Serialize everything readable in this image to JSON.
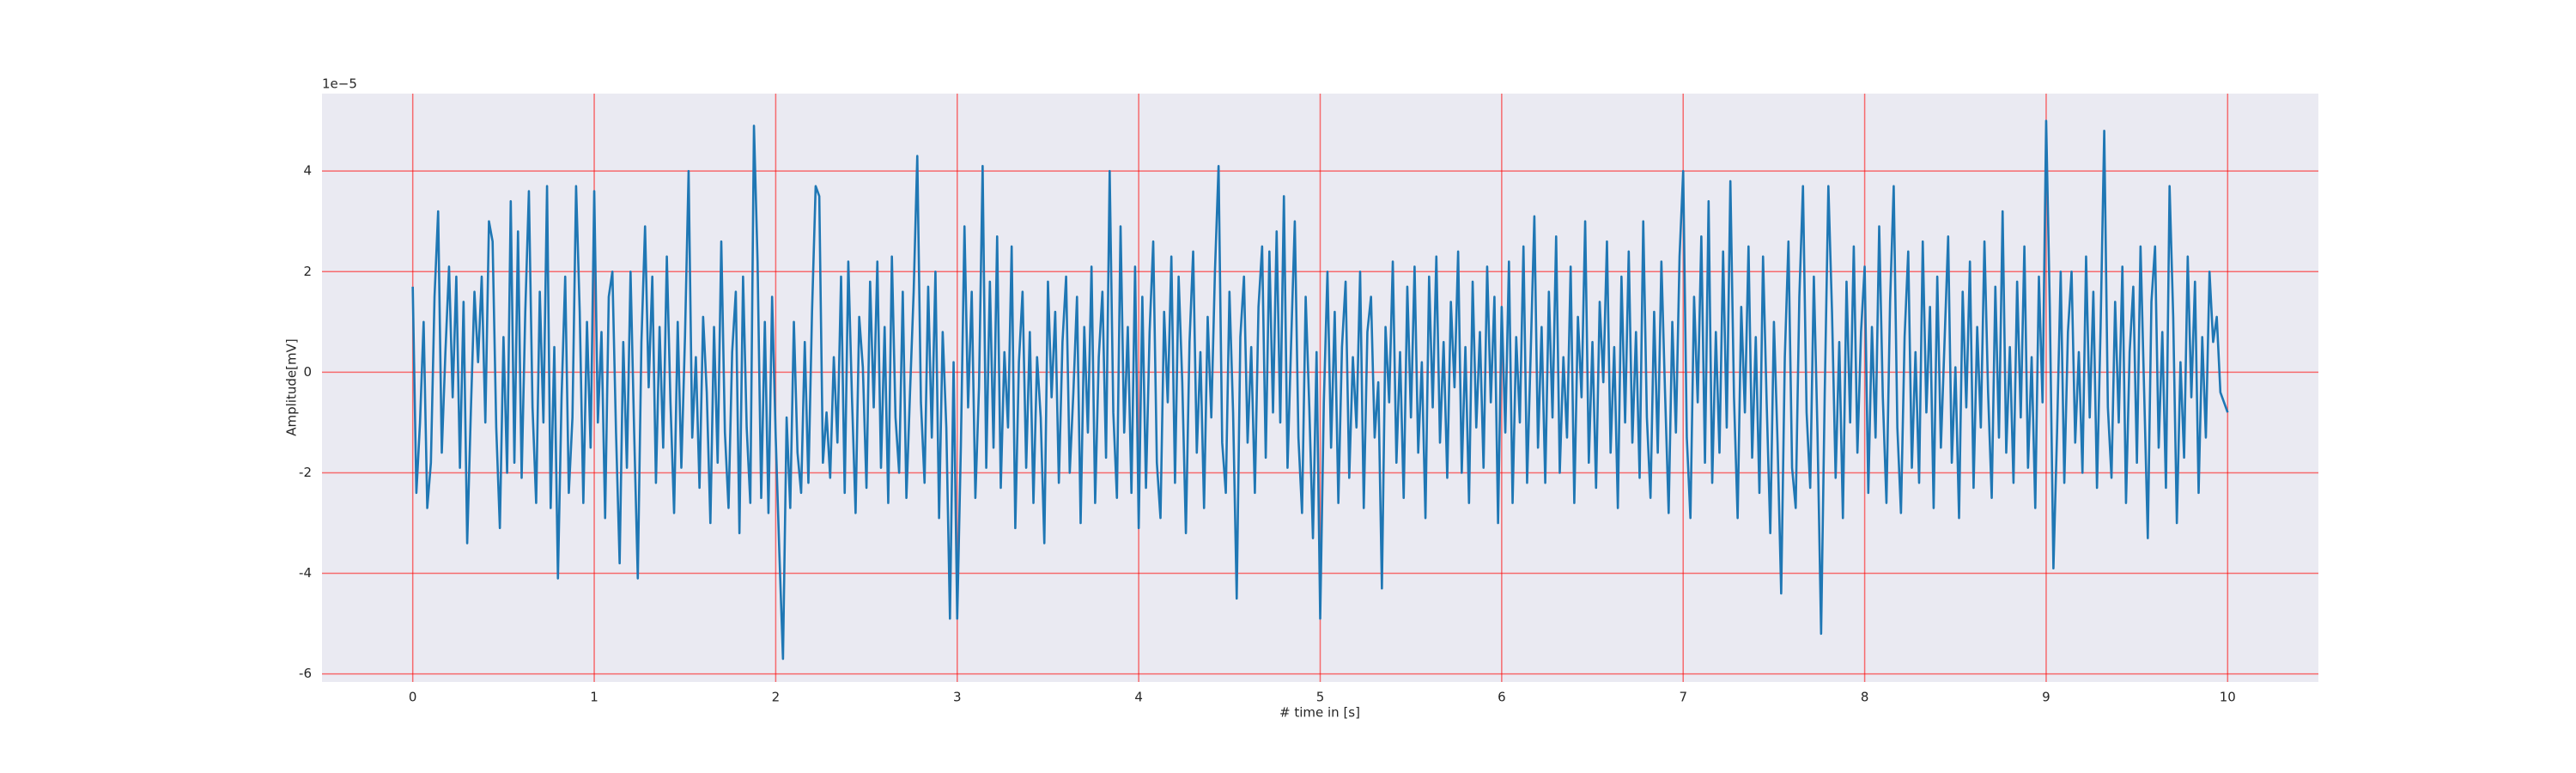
{
  "chart_data": {
    "type": "line",
    "x_label": "# time in [s]",
    "y_label": "Amplitude[mV]",
    "y_offset_label": "1e−5",
    "color": "#1f77b4",
    "grid": true,
    "grid_color": "#ff0000",
    "background": "#eaeaf2",
    "xlim": [
      -0.5,
      10.5
    ],
    "xticks": [
      0,
      1,
      2,
      3,
      4,
      5,
      6,
      7,
      8,
      9,
      10
    ],
    "ylim": [
      -6.16,
      5.54
    ],
    "yticks": [
      -6,
      -4,
      -2,
      0,
      2,
      4
    ],
    "x": [
      0,
      0.02,
      0.04,
      0.06,
      0.08,
      0.1,
      0.12,
      0.14,
      0.16,
      0.18,
      0.2,
      0.22,
      0.24,
      0.26,
      0.28,
      0.3,
      0.32,
      0.34,
      0.36,
      0.38,
      0.4,
      0.42,
      0.44,
      0.46,
      0.48,
      0.5,
      0.52,
      0.54,
      0.56,
      0.58,
      0.6,
      0.62,
      0.64,
      0.66,
      0.68,
      0.7,
      0.72,
      0.74,
      0.76,
      0.78,
      0.8,
      0.82,
      0.84,
      0.86,
      0.88,
      0.9,
      0.92,
      0.94,
      0.96,
      0.98,
      1,
      1.02,
      1.04,
      1.06,
      1.08,
      1.1,
      1.12,
      1.14,
      1.16,
      1.18,
      1.2,
      1.22,
      1.24,
      1.26,
      1.28,
      1.3,
      1.32,
      1.34,
      1.36,
      1.38,
      1.4,
      1.42,
      1.44,
      1.46,
      1.48,
      1.5,
      1.52,
      1.54,
      1.56,
      1.58,
      1.6,
      1.62,
      1.64,
      1.66,
      1.68,
      1.7,
      1.72,
      1.74,
      1.76,
      1.78,
      1.8,
      1.82,
      1.84,
      1.86,
      1.88,
      1.9,
      1.92,
      1.94,
      1.96,
      1.98,
      2,
      2.02,
      2.04,
      2.06,
      2.08,
      2.1,
      2.12,
      2.14,
      2.16,
      2.18,
      2.2,
      2.22,
      2.24,
      2.26,
      2.28,
      2.3,
      2.32,
      2.34,
      2.36,
      2.38,
      2.4,
      2.42,
      2.44,
      2.46,
      2.48,
      2.5,
      2.52,
      2.54,
      2.56,
      2.58,
      2.6,
      2.62,
      2.64,
      2.66,
      2.68,
      2.7,
      2.72,
      2.74,
      2.76,
      2.78,
      2.8,
      2.82,
      2.84,
      2.86,
      2.88,
      2.9,
      2.92,
      2.94,
      2.96,
      2.98,
      3,
      3.02,
      3.04,
      3.06,
      3.08,
      3.1,
      3.12,
      3.14,
      3.16,
      3.18,
      3.2,
      3.22,
      3.24,
      3.26,
      3.28,
      3.3,
      3.32,
      3.34,
      3.36,
      3.38,
      3.4,
      3.42,
      3.44,
      3.46,
      3.48,
      3.5,
      3.52,
      3.54,
      3.56,
      3.58,
      3.6,
      3.62,
      3.64,
      3.66,
      3.68,
      3.7,
      3.72,
      3.74,
      3.76,
      3.78,
      3.8,
      3.82,
      3.84,
      3.86,
      3.88,
      3.9,
      3.92,
      3.94,
      3.96,
      3.98,
      4,
      4.02,
      4.04,
      4.06,
      4.08,
      4.1,
      4.12,
      4.14,
      4.16,
      4.18,
      4.2,
      4.22,
      4.24,
      4.26,
      4.28,
      4.3,
      4.32,
      4.34,
      4.36,
      4.38,
      4.4,
      4.42,
      4.44,
      4.46,
      4.48,
      4.5,
      4.52,
      4.54,
      4.56,
      4.58,
      4.6,
      4.62,
      4.64,
      4.66,
      4.68,
      4.7,
      4.72,
      4.74,
      4.76,
      4.78,
      4.8,
      4.82,
      4.84,
      4.86,
      4.88,
      4.9,
      4.92,
      4.94,
      4.96,
      4.98,
      5,
      5.02,
      5.04,
      5.06,
      5.08,
      5.1,
      5.12,
      5.14,
      5.16,
      5.18,
      5.2,
      5.22,
      5.24,
      5.26,
      5.28,
      5.3,
      5.32,
      5.34,
      5.36,
      5.38,
      5.4,
      5.42,
      5.44,
      5.46,
      5.48,
      5.5,
      5.52,
      5.54,
      5.56,
      5.58,
      5.6,
      5.62,
      5.64,
      5.66,
      5.68,
      5.7,
      5.72,
      5.74,
      5.76,
      5.78,
      5.8,
      5.82,
      5.84,
      5.86,
      5.88,
      5.9,
      5.92,
      5.94,
      5.96,
      5.98,
      6,
      6.02,
      6.04,
      6.06,
      6.08,
      6.1,
      6.12,
      6.14,
      6.16,
      6.18,
      6.2,
      6.22,
      6.24,
      6.26,
      6.28,
      6.3,
      6.32,
      6.34,
      6.36,
      6.38,
      6.4,
      6.42,
      6.44,
      6.46,
      6.48,
      6.5,
      6.52,
      6.54,
      6.56,
      6.58,
      6.6,
      6.62,
      6.64,
      6.66,
      6.68,
      6.7,
      6.72,
      6.74,
      6.76,
      6.78,
      6.8,
      6.82,
      6.84,
      6.86,
      6.88,
      6.9,
      6.92,
      6.94,
      6.96,
      6.98,
      7,
      7.02,
      7.04,
      7.06,
      7.08,
      7.1,
      7.12,
      7.14,
      7.16,
      7.18,
      7.2,
      7.22,
      7.24,
      7.26,
      7.28,
      7.3,
      7.32,
      7.34,
      7.36,
      7.38,
      7.4,
      7.42,
      7.44,
      7.46,
      7.48,
      7.5,
      7.52,
      7.54,
      7.56,
      7.58,
      7.6,
      7.62,
      7.64,
      7.66,
      7.68,
      7.7,
      7.72,
      7.74,
      7.76,
      7.78,
      7.8,
      7.82,
      7.84,
      7.86,
      7.88,
      7.9,
      7.92,
      7.94,
      7.96,
      7.98,
      8,
      8.02,
      8.04,
      8.06,
      8.08,
      8.1,
      8.12,
      8.14,
      8.16,
      8.18,
      8.2,
      8.22,
      8.24,
      8.26,
      8.28,
      8.3,
      8.32,
      8.34,
      8.36,
      8.38,
      8.4,
      8.42,
      8.44,
      8.46,
      8.48,
      8.5,
      8.52,
      8.54,
      8.56,
      8.58,
      8.6,
      8.62,
      8.64,
      8.66,
      8.68,
      8.7,
      8.72,
      8.74,
      8.76,
      8.78,
      8.8,
      8.82,
      8.84,
      8.86,
      8.88,
      8.9,
      8.92,
      8.94,
      8.96,
      8.98,
      9,
      9.02,
      9.04,
      9.06,
      9.08,
      9.1,
      9.12,
      9.14,
      9.16,
      9.18,
      9.2,
      9.22,
      9.24,
      9.26,
      9.28,
      9.3,
      9.32,
      9.34,
      9.36,
      9.38,
      9.4,
      9.42,
      9.44,
      9.46,
      9.48,
      9.5,
      9.52,
      9.54,
      9.56,
      9.58,
      9.6,
      9.62,
      9.64,
      9.66,
      9.68,
      9.7,
      9.72,
      9.74,
      9.76,
      9.78,
      9.8,
      9.82,
      9.84,
      9.86,
      9.88,
      9.9,
      9.92,
      9.94,
      9.96,
      9.98,
      10
    ],
    "values": [
      1.7,
      -2.4,
      -1.0,
      1.0,
      -2.7,
      -1.8,
      1.5,
      3.2,
      -1.6,
      0.4,
      2.1,
      -0.5,
      1.9,
      -1.9,
      1.4,
      -3.4,
      -0.8,
      1.6,
      0.2,
      1.9,
      -1.0,
      3.0,
      2.6,
      -1.1,
      -3.1,
      0.7,
      -2.0,
      3.4,
      -1.8,
      2.8,
      -2.1,
      1.2,
      3.6,
      -0.7,
      -2.6,
      1.6,
      -1.0,
      3.7,
      -2.7,
      0.5,
      -4.1,
      -0.5,
      1.9,
      -2.4,
      -0.9,
      3.7,
      1.2,
      -2.6,
      1.0,
      -1.5,
      3.6,
      -1.0,
      0.8,
      -2.9,
      1.5,
      2.0,
      -1.2,
      -3.8,
      0.6,
      -1.9,
      2.0,
      -1.2,
      -4.1,
      0.6,
      2.9,
      -0.3,
      1.9,
      -2.2,
      0.9,
      -1.5,
      2.3,
      -0.6,
      -2.8,
      1.0,
      -1.9,
      0.7,
      4.0,
      -1.3,
      0.3,
      -2.3,
      1.1,
      -0.4,
      -3.0,
      0.9,
      -1.8,
      2.6,
      -1.2,
      -2.7,
      0.4,
      1.6,
      -3.2,
      1.9,
      -1.1,
      -2.6,
      4.9,
      2.2,
      -2.5,
      1.0,
      -2.8,
      1.5,
      -1.3,
      -3.6,
      -5.7,
      -0.9,
      -2.7,
      1.0,
      -1.6,
      -2.4,
      0.6,
      -2.2,
      1.2,
      3.7,
      3.5,
      -1.8,
      -0.8,
      -2.1,
      0.3,
      -1.4,
      1.9,
      -2.4,
      2.2,
      -0.5,
      -2.8,
      1.1,
      0.1,
      -2.3,
      1.8,
      -0.7,
      2.2,
      -1.9,
      0.9,
      -2.6,
      2.3,
      -0.9,
      -2.0,
      1.6,
      -2.5,
      -0.4,
      1.6,
      4.3,
      -0.6,
      -2.2,
      1.7,
      -1.3,
      2.0,
      -2.9,
      0.8,
      -1.1,
      -4.9,
      0.2,
      -4.9,
      -1.5,
      2.9,
      -0.7,
      1.6,
      -2.5,
      -0.3,
      4.1,
      -1.9,
      1.8,
      -1.5,
      2.7,
      -2.3,
      0.4,
      -1.1,
      2.5,
      -3.1,
      0.2,
      1.6,
      -1.9,
      0.8,
      -2.6,
      0.3,
      -0.9,
      -3.4,
      1.8,
      -0.5,
      1.2,
      -2.2,
      0.6,
      1.9,
      -2.0,
      -0.4,
      1.5,
      -3.0,
      0.9,
      -1.2,
      2.1,
      -2.6,
      0.3,
      1.6,
      -1.7,
      4.0,
      -0.8,
      -2.5,
      2.9,
      -1.2,
      0.9,
      -2.4,
      2.1,
      -3.1,
      1.5,
      -2.3,
      0.8,
      2.6,
      -1.8,
      -2.9,
      1.2,
      -0.6,
      2.3,
      -2.2,
      1.9,
      -0.2,
      -3.2,
      0.6,
      2.4,
      -1.6,
      0.4,
      -2.7,
      1.1,
      -0.9,
      2.0,
      4.1,
      -1.4,
      -2.4,
      1.6,
      -0.8,
      -4.5,
      0.7,
      1.9,
      -1.4,
      0.5,
      -2.4,
      1.3,
      2.5,
      -1.7,
      2.4,
      -0.8,
      2.8,
      -1.0,
      3.5,
      -1.9,
      0.6,
      3.0,
      -1.3,
      -2.8,
      1.5,
      -0.7,
      -3.3,
      0.4,
      -4.9,
      -0.6,
      2.0,
      -1.5,
      1.2,
      -2.6,
      0.5,
      1.8,
      -2.1,
      0.3,
      -1.1,
      2.0,
      -2.7,
      0.8,
      1.5,
      -1.3,
      -0.2,
      -4.3,
      0.9,
      -0.6,
      2.2,
      -1.8,
      0.4,
      -2.5,
      1.7,
      -0.9,
      2.1,
      -1.6,
      0.2,
      -2.9,
      1.9,
      -0.7,
      2.3,
      -1.4,
      0.6,
      -2.1,
      1.4,
      -0.3,
      2.4,
      -2.0,
      0.5,
      -2.6,
      1.8,
      -1.1,
      0.8,
      -1.9,
      2.1,
      -0.6,
      1.5,
      -3.0,
      1.3,
      -1.2,
      2.2,
      -2.6,
      0.7,
      -1.0,
      2.5,
      -2.2,
      0.4,
      3.1,
      -1.5,
      0.9,
      -2.2,
      1.6,
      -0.9,
      2.7,
      -2.0,
      0.3,
      -1.3,
      2.1,
      -2.6,
      1.1,
      -0.5,
      3.0,
      -1.8,
      0.6,
      -2.3,
      1.4,
      -0.2,
      2.6,
      -1.6,
      0.5,
      -2.7,
      1.9,
      -1.0,
      2.4,
      -1.4,
      0.8,
      -2.1,
      3.0,
      -0.9,
      -2.5,
      1.2,
      -1.6,
      2.2,
      -0.4,
      -2.8,
      1.0,
      -1.2,
      2.3,
      4.0,
      -1.3,
      -2.9,
      1.5,
      -0.6,
      2.7,
      -1.8,
      3.4,
      -2.2,
      0.8,
      -1.6,
      2.4,
      -1.1,
      3.8,
      -0.5,
      -2.9,
      1.3,
      -0.8,
      2.5,
      -1.7,
      0.7,
      -2.4,
      2.3,
      -0.6,
      -3.2,
      1.0,
      -1.4,
      -4.4,
      0.3,
      2.6,
      -1.9,
      -2.7,
      1.5,
      3.7,
      -0.8,
      -2.3,
      1.9,
      -1.2,
      -5.2,
      -0.4,
      3.7,
      1.2,
      -2.1,
      0.6,
      -2.9,
      1.8,
      -1.0,
      2.5,
      -1.6,
      0.8,
      2.1,
      -2.4,
      0.9,
      -1.3,
      2.9,
      -0.5,
      -2.6,
      1.4,
      3.7,
      -1.1,
      -2.8,
      0.7,
      2.4,
      -1.9,
      0.4,
      -2.2,
      2.6,
      -0.8,
      1.3,
      -2.7,
      1.9,
      -1.5,
      0.6,
      2.7,
      -1.8,
      0.1,
      -2.9,
      1.6,
      -0.7,
      2.2,
      -2.3,
      0.9,
      -1.1,
      2.6,
      -0.4,
      -2.5,
      1.7,
      -1.3,
      3.2,
      -1.6,
      0.5,
      -2.2,
      1.8,
      -0.9,
      2.5,
      -1.9,
      0.3,
      -2.7,
      1.9,
      -0.6,
      5.0,
      1.3,
      -3.9,
      -1.2,
      2.0,
      -2.2,
      0.8,
      2.0,
      -1.4,
      0.4,
      -2.0,
      2.3,
      -0.9,
      1.6,
      -2.3,
      0.9,
      4.8,
      -0.7,
      -2.1,
      1.4,
      -1.0,
      2.1,
      -2.6,
      0.4,
      1.7,
      -1.8,
      2.5,
      -0.4,
      -3.3,
      1.4,
      2.5,
      -1.5,
      0.8,
      -2.3,
      3.7,
      1.1,
      -3.0,
      0.2,
      -1.7,
      2.3,
      -0.5,
      1.8,
      -2.4,
      0.7,
      -1.3,
      2.0,
      0.6,
      1.1,
      -0.4,
      -0.6,
      -0.8
    ]
  }
}
